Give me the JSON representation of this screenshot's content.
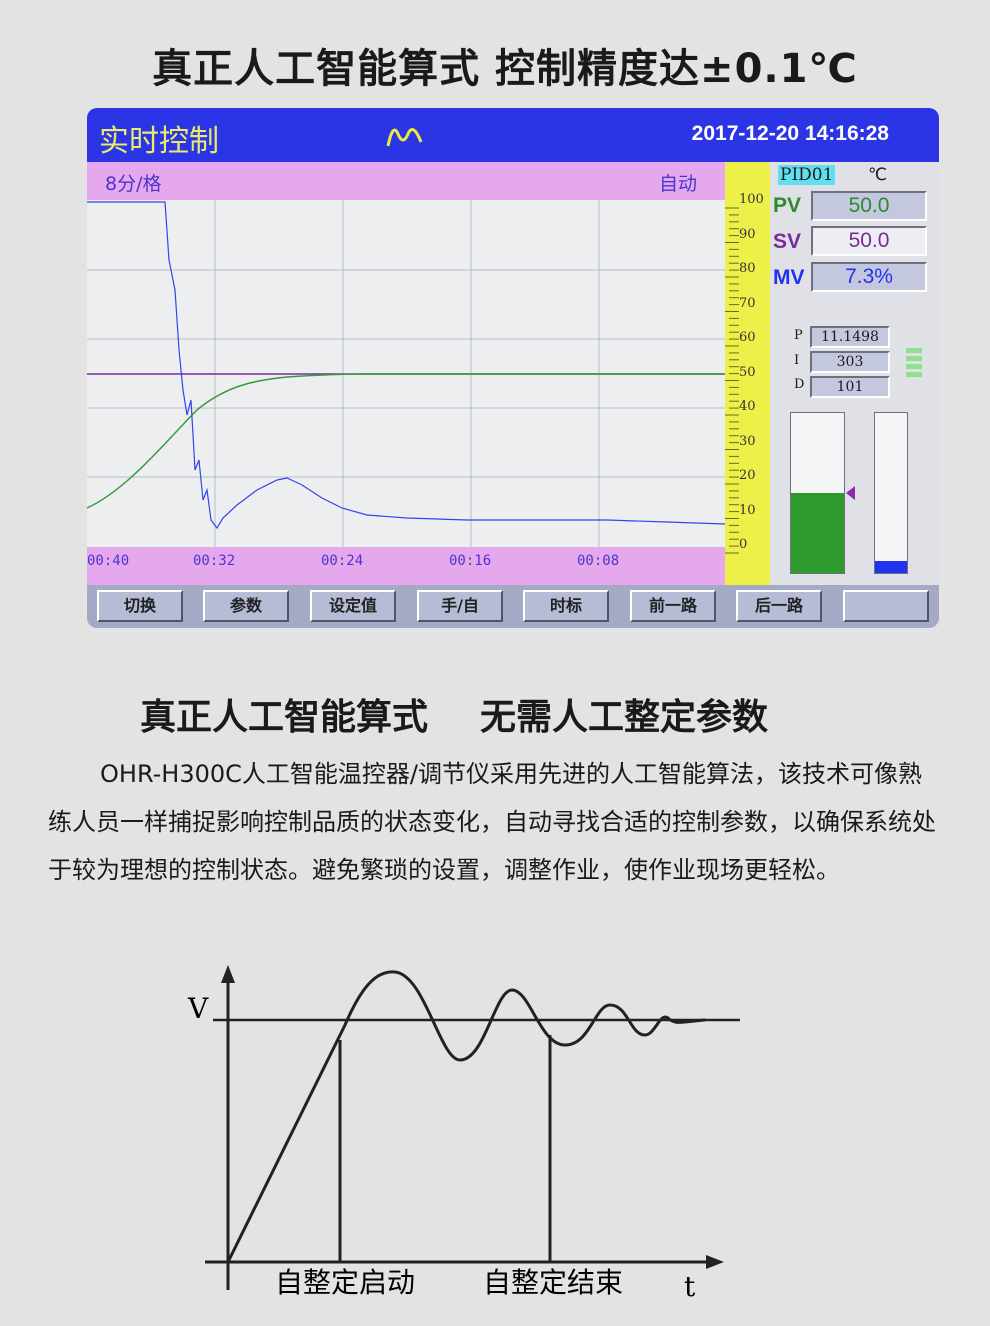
{
  "headline": "真正人工智能算式 控制精度达±0.1℃",
  "screen": {
    "title": "实时控制",
    "logo_icon": "wave-logo-icon",
    "datetime": "2017-12-20 14:16:28",
    "time_scale": "8分/格",
    "mode": "自动",
    "time_labels": [
      "00:40",
      "00:32",
      "00:24",
      "00:16",
      "00:08"
    ],
    "y_scale": [
      "100",
      "90",
      "80",
      "70",
      "60",
      "50",
      "40",
      "30",
      "20",
      "10",
      "0"
    ],
    "channel": "PID01",
    "unit": "℃",
    "pv": {
      "label": "PV",
      "value": "50.0",
      "color": "#2e8a2e"
    },
    "sv": {
      "label": "SV",
      "value": "50.0",
      "color": "#7a2a9a"
    },
    "mv": {
      "label": "MV",
      "value": "7.3%",
      "color": "#2233ee"
    },
    "p": {
      "label": "P",
      "value": "11.1498"
    },
    "i": {
      "label": "I",
      "value": "303"
    },
    "d": {
      "label": "D",
      "value": "101"
    },
    "pv_bar_percent": 50,
    "mv_bar_percent": 7.3,
    "buttons": [
      "切换",
      "参数",
      "设定值",
      "手/自",
      "时标",
      "前一路",
      "后一路",
      ""
    ]
  },
  "subtitle": [
    "真正人工智能算式",
    "无需人工整定参数"
  ],
  "paragraph": "OHR-H300C人工智能温控器/调节仪采用先进的人工智能算法，该技术可像熟练人员一样捕捉影响控制品质的状态变化，自动寻找合适的控制参数，以确保系统处于较为理想的控制状态。避免繁琐的设置，调整作业，使作业现场更轻松。",
  "diagram": {
    "y_axis": "V",
    "x_axis": "t",
    "start_label": "自整定启动",
    "end_label": "自整定结束"
  }
}
